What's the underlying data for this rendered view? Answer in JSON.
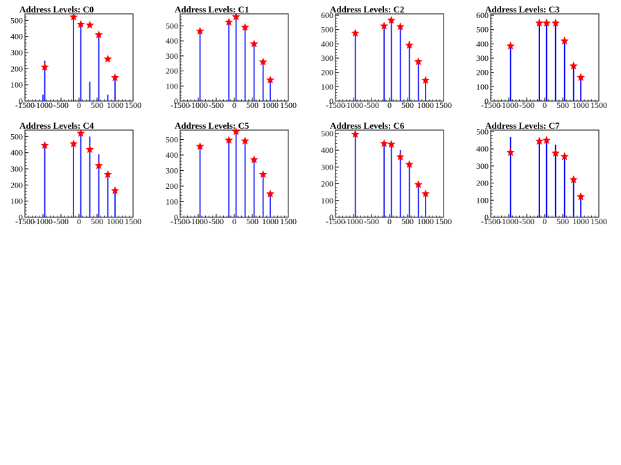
{
  "colors": {
    "bars": "#0000ff",
    "markers": "#ff0000",
    "marker_outline": "#ff0000",
    "frame": "#000000"
  },
  "chart_data": [
    {
      "type": "bar",
      "title": "Address Levels: C0",
      "xlim": [
        -1500,
        1500
      ],
      "ylim": [
        0,
        540
      ],
      "xticks": [
        "-1500",
        "-1000",
        "-500",
        "0",
        "500",
        "1000",
        "1500"
      ],
      "yticks": [
        "0",
        "100",
        "200",
        "300",
        "400",
        "500"
      ],
      "bars": {
        "x": [
          -1000,
          -950,
          -150,
          50,
          300,
          550,
          800,
          1000
        ],
        "values": [
          40,
          250,
          520,
          470,
          120,
          400,
          40,
          145
        ]
      },
      "markers": {
        "x": [
          -950,
          -150,
          50,
          300,
          550,
          800,
          1000
        ],
        "values": [
          210,
          520,
          475,
          470,
          410,
          260,
          145
        ]
      }
    },
    {
      "type": "bar",
      "title": "Address Levels: C1",
      "xlim": [
        -1500,
        1500
      ],
      "ylim": [
        0,
        580
      ],
      "xticks": [
        "-1500",
        "-1000",
        "-500",
        "0",
        "500",
        "1000",
        "1500"
      ],
      "yticks": [
        "0",
        "100",
        "200",
        "300",
        "400",
        "500"
      ],
      "bars": {
        "x": [
          -950,
          -150,
          50,
          300,
          550,
          800,
          1000
        ],
        "values": [
          470,
          525,
          560,
          490,
          380,
          260,
          140
        ]
      },
      "markers": {
        "x": [
          -950,
          -150,
          50,
          300,
          550,
          800,
          1000
        ],
        "values": [
          465,
          525,
          560,
          490,
          380,
          260,
          140
        ]
      }
    },
    {
      "type": "bar",
      "title": "Address Levels: C2",
      "xlim": [
        -1500,
        1500
      ],
      "ylim": [
        0,
        610
      ],
      "xticks": [
        "-1500",
        "-1000",
        "-500",
        "0",
        "500",
        "1000",
        "1500"
      ],
      "yticks": [
        "0",
        "100",
        "200",
        "300",
        "400",
        "500",
        "600"
      ],
      "bars": {
        "x": [
          -950,
          -150,
          50,
          300,
          550,
          800,
          1000
        ],
        "values": [
          490,
          520,
          570,
          510,
          420,
          270,
          150
        ]
      },
      "markers": {
        "x": [
          -950,
          -150,
          50,
          300,
          550,
          800,
          1000
        ],
        "values": [
          475,
          525,
          565,
          520,
          390,
          275,
          145
        ]
      }
    },
    {
      "type": "bar",
      "title": "Address Levels: C3",
      "xlim": [
        -1500,
        1500
      ],
      "ylim": [
        0,
        610
      ],
      "xticks": [
        "-1500",
        "-1000",
        "-500",
        "0",
        "500",
        "1000",
        "1500"
      ],
      "yticks": [
        "0",
        "100",
        "200",
        "300",
        "400",
        "500",
        "600"
      ],
      "bars": {
        "x": [
          -950,
          -150,
          50,
          300,
          550,
          800,
          1000
        ],
        "values": [
          390,
          540,
          540,
          540,
          420,
          250,
          170
        ]
      },
      "markers": {
        "x": [
          -950,
          -150,
          50,
          300,
          550,
          800,
          1000
        ],
        "values": [
          385,
          545,
          545,
          545,
          420,
          245,
          165
        ]
      }
    },
    {
      "type": "bar",
      "title": "Address Levels: C4",
      "xlim": [
        -1500,
        1500
      ],
      "ylim": [
        0,
        540
      ],
      "xticks": [
        "-1500",
        "-1000",
        "-500",
        "0",
        "500",
        "1000",
        "1500"
      ],
      "yticks": [
        "0",
        "100",
        "200",
        "300",
        "400",
        "500"
      ],
      "bars": {
        "x": [
          -950,
          -150,
          50,
          300,
          550,
          800,
          1000
        ],
        "values": [
          450,
          460,
          520,
          500,
          390,
          270,
          170
        ]
      },
      "markers": {
        "x": [
          -950,
          -150,
          50,
          300,
          550,
          800,
          1000
        ],
        "values": [
          445,
          455,
          520,
          420,
          320,
          265,
          165
        ]
      }
    },
    {
      "type": "bar",
      "title": "Address Levels: C5",
      "xlim": [
        -1500,
        1500
      ],
      "ylim": [
        0,
        560
      ],
      "xticks": [
        "-1500",
        "-1000",
        "-500",
        "0",
        "500",
        "1000",
        "1500"
      ],
      "yticks": [
        "0",
        "100",
        "200",
        "300",
        "400",
        "500"
      ],
      "bars": {
        "x": [
          -950,
          -150,
          50,
          300,
          550,
          800,
          1000
        ],
        "values": [
          460,
          500,
          550,
          490,
          370,
          280,
          150
        ]
      },
      "markers": {
        "x": [
          -950,
          -150,
          50,
          300,
          550,
          800,
          1000
        ],
        "values": [
          455,
          495,
          550,
          490,
          370,
          275,
          150
        ]
      }
    },
    {
      "type": "bar",
      "title": "Address Levels: C6",
      "xlim": [
        -1500,
        1500
      ],
      "ylim": [
        0,
        520
      ],
      "xticks": [
        "-1500",
        "-1000",
        "-500",
        "0",
        "500",
        "1000",
        "1500"
      ],
      "yticks": [
        "0",
        "100",
        "200",
        "300",
        "400",
        "500"
      ],
      "bars": {
        "x": [
          -950,
          -150,
          50,
          300,
          550,
          800,
          1000
        ],
        "values": [
          505,
          440,
          440,
          400,
          320,
          200,
          145
        ]
      },
      "markers": {
        "x": [
          -950,
          -150,
          50,
          300,
          550,
          800,
          1000
        ],
        "values": [
          495,
          440,
          435,
          360,
          315,
          195,
          140
        ]
      }
    },
    {
      "type": "bar",
      "title": "Address Levels: C7",
      "xlim": [
        -1500,
        1500
      ],
      "ylim": [
        0,
        510
      ],
      "xticks": [
        "-1500",
        "-1000",
        "-500",
        "0",
        "500",
        "1000",
        "1500"
      ],
      "yticks": [
        "0",
        "100",
        "200",
        "300",
        "400",
        "500"
      ],
      "bars": {
        "x": [
          -950,
          -150,
          50,
          300,
          550,
          800,
          1000
        ],
        "values": [
          470,
          450,
          450,
          425,
          360,
          210,
          140
        ]
      },
      "markers": {
        "x": [
          -950,
          -150,
          50,
          300,
          550,
          800,
          1000
        ],
        "values": [
          380,
          445,
          450,
          375,
          355,
          220,
          120
        ]
      }
    }
  ]
}
